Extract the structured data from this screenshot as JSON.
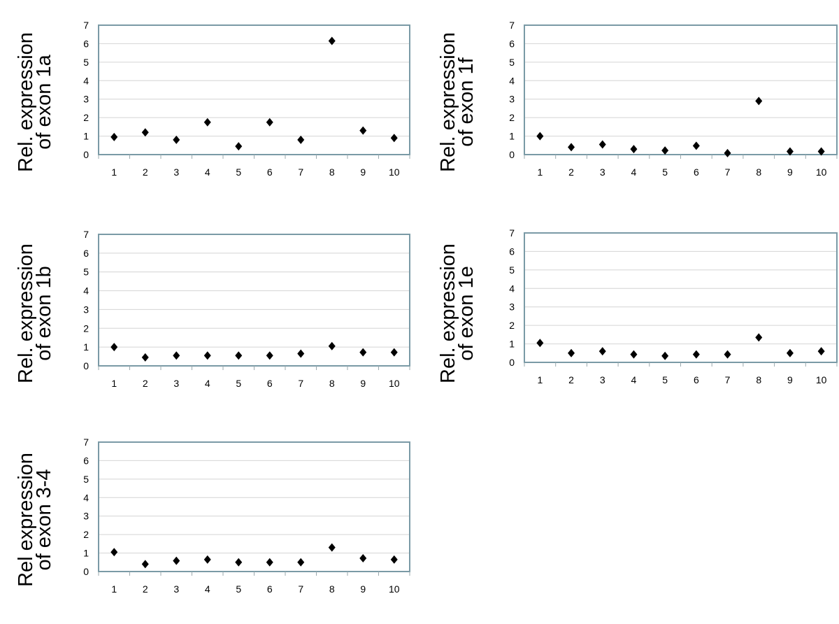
{
  "colors": {
    "frame": "#7a9aa6",
    "grid": "#d4d4d4",
    "marker": "#000000"
  },
  "chart_data": [
    {
      "type": "scatter",
      "ylabel": [
        "Rel. expression",
        "of exon 1a"
      ],
      "x": [
        1,
        2,
        3,
        4,
        5,
        6,
        7,
        8,
        9,
        10
      ],
      "y": [
        0.95,
        1.2,
        0.8,
        1.75,
        0.45,
        1.75,
        0.8,
        6.15,
        1.3,
        0.9
      ],
      "ylim": [
        0,
        7
      ],
      "yticks": [
        "0",
        "1",
        "2",
        "3",
        "4",
        "5",
        "6",
        "7"
      ],
      "xticks": [
        "1",
        "2",
        "3",
        "4",
        "5",
        "6",
        "7",
        "8",
        "9",
        "10"
      ],
      "marker": "diamond",
      "grid": true
    },
    {
      "type": "scatter",
      "ylabel": [
        "Rel. expression",
        "of exon 1f"
      ],
      "x": [
        1,
        2,
        3,
        4,
        5,
        6,
        7,
        8,
        9,
        10
      ],
      "y": [
        1.0,
        0.4,
        0.55,
        0.3,
        0.22,
        0.48,
        0.08,
        2.9,
        0.17,
        0.17
      ],
      "ylim": [
        0,
        7
      ],
      "yticks": [
        "0",
        "1",
        "2",
        "3",
        "4",
        "5",
        "6",
        "7"
      ],
      "xticks": [
        "1",
        "2",
        "3",
        "4",
        "5",
        "6",
        "7",
        "8",
        "9",
        "10"
      ],
      "marker": "diamond",
      "grid": true
    },
    {
      "type": "scatter",
      "ylabel": [
        "Rel. expression",
        "of exon 1b"
      ],
      "x": [
        1,
        2,
        3,
        4,
        5,
        6,
        7,
        8,
        9,
        10
      ],
      "y": [
        1.0,
        0.45,
        0.55,
        0.55,
        0.55,
        0.55,
        0.65,
        1.05,
        0.72,
        0.72
      ],
      "ylim": [
        0,
        7
      ],
      "yticks": [
        "0",
        "1",
        "2",
        "3",
        "4",
        "5",
        "6",
        "7"
      ],
      "xticks": [
        "1",
        "2",
        "3",
        "4",
        "5",
        "6",
        "7",
        "8",
        "9",
        "10"
      ],
      "marker": "diamond",
      "grid": true
    },
    {
      "type": "scatter",
      "ylabel": [
        "Rel. expression",
        "of exon 1e"
      ],
      "x": [
        1,
        2,
        3,
        4,
        5,
        6,
        7,
        8,
        9,
        10
      ],
      "y": [
        1.05,
        0.5,
        0.6,
        0.43,
        0.35,
        0.43,
        0.43,
        1.35,
        0.5,
        0.6
      ],
      "ylim": [
        0,
        7
      ],
      "yticks": [
        "0",
        "1",
        "2",
        "3",
        "4",
        "5",
        "6",
        "7"
      ],
      "xticks": [
        "1",
        "2",
        "3",
        "4",
        "5",
        "6",
        "7",
        "8",
        "9",
        "10"
      ],
      "marker": "diamond",
      "grid": true
    },
    {
      "type": "scatter",
      "ylabel": [
        "Rel expression",
        "of exon 3-4"
      ],
      "x": [
        1,
        2,
        3,
        4,
        5,
        6,
        7,
        8,
        9,
        10
      ],
      "y": [
        1.05,
        0.4,
        0.58,
        0.65,
        0.5,
        0.5,
        0.5,
        1.3,
        0.72,
        0.65
      ],
      "ylim": [
        0,
        7
      ],
      "yticks": [
        "0",
        "1",
        "2",
        "3",
        "4",
        "5",
        "6",
        "7"
      ],
      "xticks": [
        "1",
        "2",
        "3",
        "4",
        "5",
        "6",
        "7",
        "8",
        "9",
        "10"
      ],
      "marker": "diamond",
      "grid": true
    }
  ]
}
